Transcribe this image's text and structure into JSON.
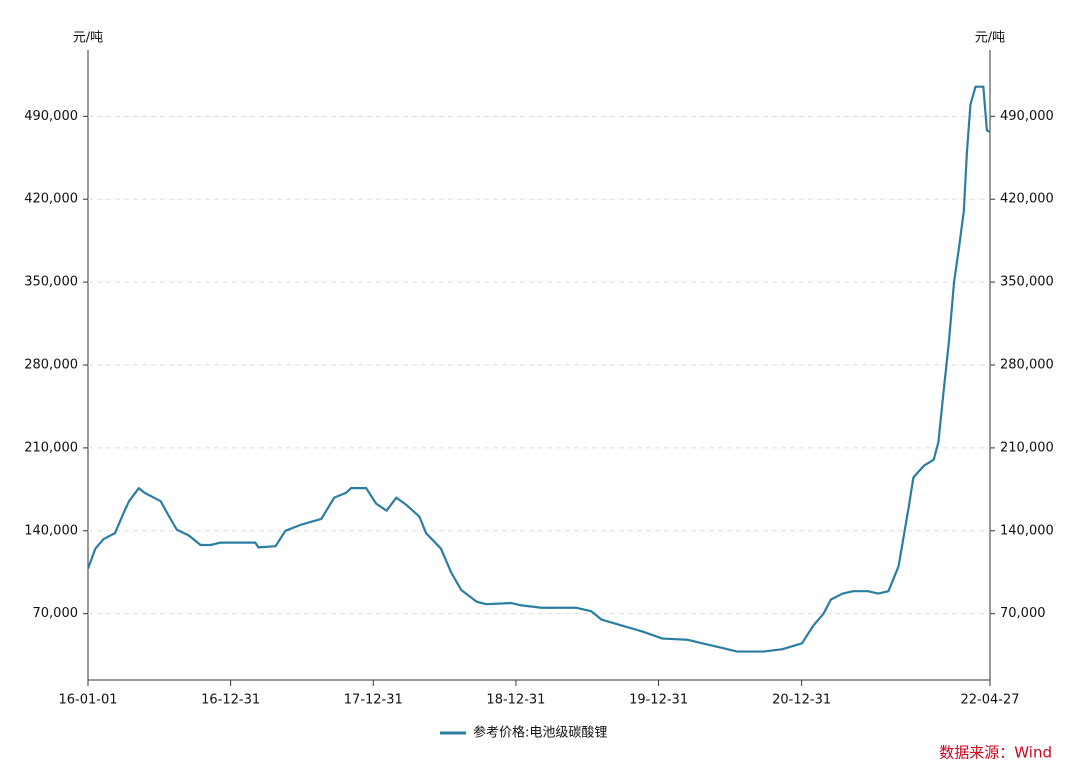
{
  "chart_data": {
    "type": "line",
    "y_label": "元/吨",
    "y2_label": "元/吨",
    "x": [
      "16-01-01",
      "16-01-20",
      "16-02-10",
      "16-03-10",
      "16-04-01",
      "16-04-15",
      "16-05-10",
      "16-05-25",
      "16-07-05",
      "16-07-25",
      "16-08-15",
      "16-09-15",
      "16-10-15",
      "16-11-10",
      "16-12-04",
      "17-03-04",
      "17-03-12",
      "17-04-25",
      "17-05-20",
      "17-06-28",
      "17-08-20",
      "17-09-22",
      "17-10-22",
      "17-11-04",
      "17-12-13",
      "18-01-07",
      "18-02-03",
      "18-02-28",
      "18-03-25",
      "18-04-28",
      "18-05-15",
      "18-06-22",
      "18-07-18",
      "18-08-13",
      "18-09-22",
      "18-10-16",
      "18-12-19",
      "19-01-15",
      "19-03-06",
      "19-06-04",
      "19-07-12",
      "19-08-07",
      "19-09-28",
      "19-11-19",
      "20-01-10",
      "20-03-13",
      "20-04-21",
      "20-06-12",
      "20-07-19",
      "20-09-24",
      "20-11-12",
      "21-01-01",
      "21-01-30",
      "21-02-25",
      "21-03-16",
      "21-04-15",
      "21-05-12",
      "21-06-19",
      "21-07-15",
      "21-08-10",
      "21-09-05",
      "21-10-01",
      "21-10-13",
      "21-11-09",
      "21-12-04",
      "21-12-16",
      "21-12-30",
      "22-01-12",
      "22-01-25",
      "22-02-07",
      "22-02-19",
      "22-02-27",
      "22-03-08",
      "22-03-21",
      "22-04-10",
      "22-04-19",
      "22-04-27"
    ],
    "series": [
      {
        "name": "参考价格:电池级碳酸锂",
        "color": "#2b7ea1",
        "values": [
          108000,
          125000,
          133000,
          138000,
          155000,
          165000,
          176000,
          172000,
          165000,
          153000,
          141000,
          136000,
          128000,
          128000,
          130000,
          130000,
          126000,
          127000,
          140000,
          145000,
          150000,
          168000,
          172000,
          176000,
          176000,
          163000,
          157000,
          168000,
          162000,
          152000,
          138000,
          125000,
          105000,
          90000,
          80000,
          78000,
          79000,
          77000,
          75000,
          75000,
          72000,
          65000,
          60000,
          55000,
          49000,
          48000,
          45000,
          41000,
          38000,
          38000,
          40000,
          45000,
          60000,
          70000,
          82000,
          87000,
          89000,
          89000,
          87000,
          89000,
          110000,
          160000,
          185000,
          195000,
          200000,
          215000,
          260000,
          300000,
          350000,
          380000,
          410000,
          460000,
          500000,
          515000,
          515000,
          478000,
          477000
        ]
      }
    ],
    "xlim": [
      "16-01-01",
      "22-04-27"
    ],
    "xticks": [
      "16-01-01",
      "16-12-31",
      "17-12-31",
      "18-12-31",
      "19-12-31",
      "20-12-31",
      "22-04-27"
    ],
    "ylim": [
      14000,
      546000
    ],
    "yticks": [
      {
        "value": 70000,
        "label": "70,000"
      },
      {
        "value": 140000,
        "label": "140,000"
      },
      {
        "value": 210000,
        "label": "210,000"
      },
      {
        "value": 280000,
        "label": "280,000"
      },
      {
        "value": 350000,
        "label": "350,000"
      },
      {
        "value": 420000,
        "label": "420,000"
      },
      {
        "value": 490000,
        "label": "490,000"
      }
    ],
    "y2lim": [
      14000,
      546000
    ],
    "y2ticks": [
      {
        "value": 70000,
        "label": "70,000"
      },
      {
        "value": 140000,
        "label": "140,000"
      },
      {
        "value": 210000,
        "label": "210,000"
      },
      {
        "value": 280000,
        "label": "280,000"
      },
      {
        "value": 350000,
        "label": "350,000"
      },
      {
        "value": 420000,
        "label": "420,000"
      },
      {
        "value": 490000,
        "label": "490,000"
      }
    ],
    "grid": true,
    "legend": "bottom",
    "source": "数据来源：Wind",
    "source_color": "#d0021b"
  }
}
